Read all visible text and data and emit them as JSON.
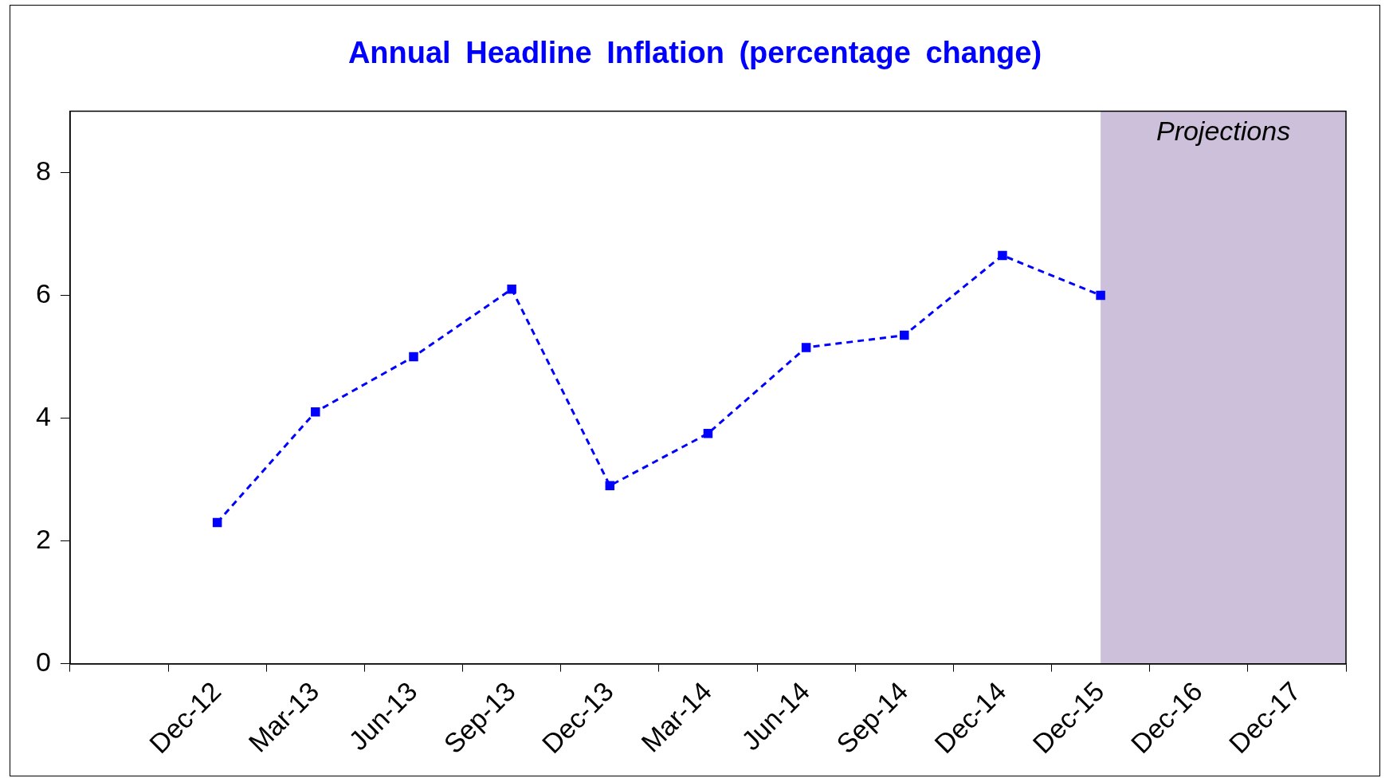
{
  "chart_data": {
    "type": "line",
    "title": "Annual Headline Inflation (percentage change)",
    "categories": [
      null,
      "Dec-12",
      "Mar-13",
      "Jun-13",
      "Sep-13",
      "Dec-13",
      "Mar-14",
      "Jun-14",
      "Sep-14",
      "Dec-14",
      "Dec-15",
      "Dec-16",
      "Dec-17"
    ],
    "series": [
      {
        "color": "#0000ff",
        "values": [
          null,
          2.3,
          4.1,
          5.0,
          6.1,
          2.9,
          3.75,
          5.15,
          5.35,
          6.65,
          6.0,
          null,
          null
        ]
      }
    ],
    "ylim": [
      0,
      9
    ],
    "yticks": [
      0,
      2,
      4,
      6,
      8
    ],
    "bands": [
      {
        "axis": "x",
        "from": "Dec-15",
        "to": "Dec-17",
        "label": "Projections",
        "color": "#ccc0da"
      }
    ],
    "marker": "square",
    "line_style": "dashed",
    "grid": false,
    "legend": false
  }
}
